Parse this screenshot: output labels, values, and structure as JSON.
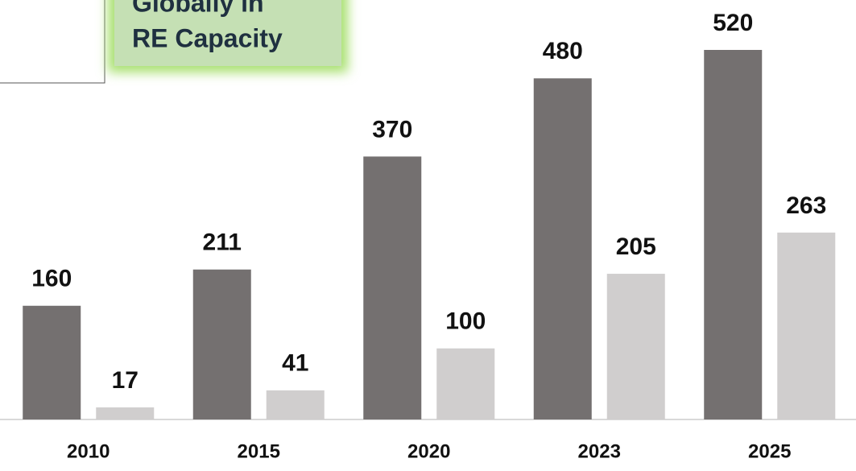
{
  "chart_data": {
    "type": "bar",
    "annotation": [
      "Globally in",
      "RE Capacity"
    ],
    "categories": [
      "2010",
      "2015",
      "2020",
      "2023",
      "2025"
    ],
    "series": [
      {
        "color": "#747070",
        "values": [
          160,
          211,
          370,
          480,
          520
        ]
      },
      {
        "color": "#d0cece",
        "values": [
          17,
          41,
          100,
          205,
          263
        ]
      }
    ],
    "ylim": [
      0,
      520
    ]
  }
}
